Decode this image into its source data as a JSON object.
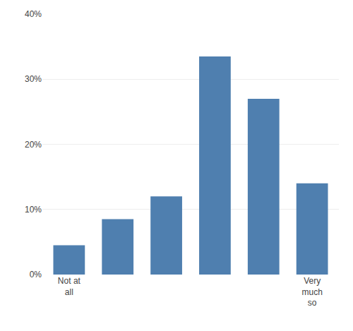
{
  "chart_data": {
    "type": "bar",
    "categories": [
      "Not at\nall",
      null,
      null,
      null,
      null,
      "Very\nmuch\nso"
    ],
    "values": [
      4.5,
      8.5,
      12.0,
      33.5,
      27.0,
      14.0
    ],
    "color": "#4f7faf",
    "ylim": [
      0,
      40
    ],
    "yticks": [
      {
        "value": 0,
        "label": "0%"
      },
      {
        "value": 10,
        "label": "10%"
      },
      {
        "value": 20,
        "label": "20%"
      },
      {
        "value": 30,
        "label": "30%"
      },
      {
        "value": 40,
        "label": "40%"
      }
    ],
    "grid": true
  }
}
